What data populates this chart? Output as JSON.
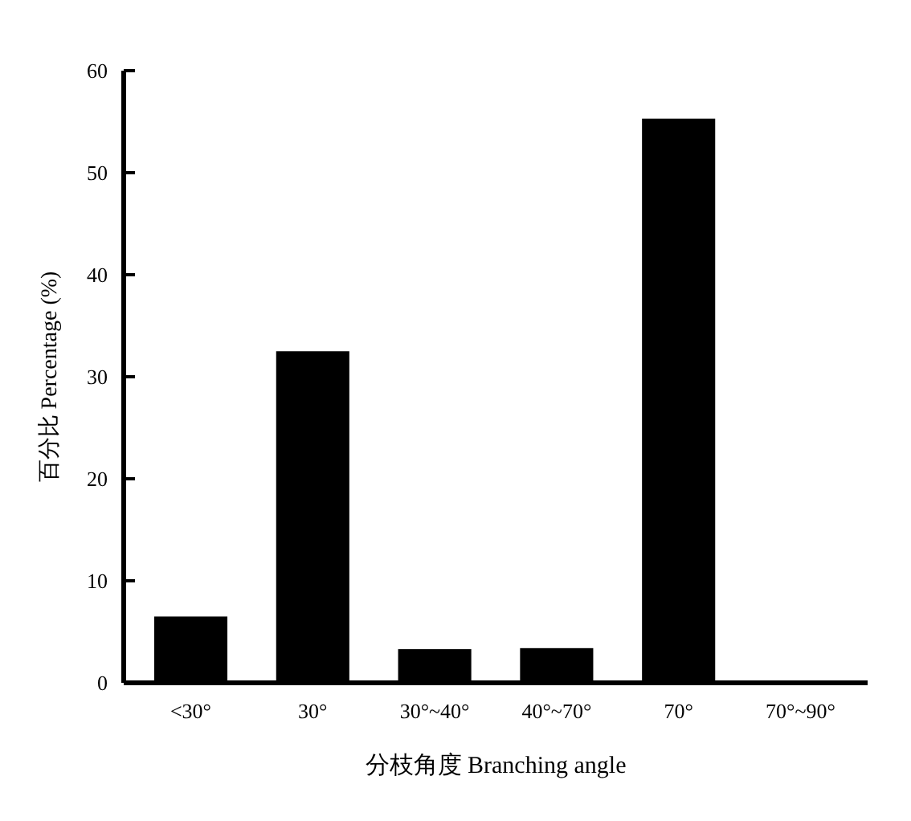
{
  "chart_data": {
    "type": "bar",
    "xlabel": "分枝角度 Branching angle",
    "ylabel": "百分比 Percentage (%)",
    "categories": [
      "<30°",
      "30°",
      "30°~40°",
      "40°~70°",
      "70°",
      "70°~90°"
    ],
    "values": [
      6.5,
      32.5,
      3.3,
      3.4,
      55.3,
      0
    ],
    "color": "#000000",
    "ylim": [
      0,
      60
    ],
    "yticks": [
      0,
      10,
      20,
      30,
      40,
      50,
      60
    ],
    "grid": false
  }
}
